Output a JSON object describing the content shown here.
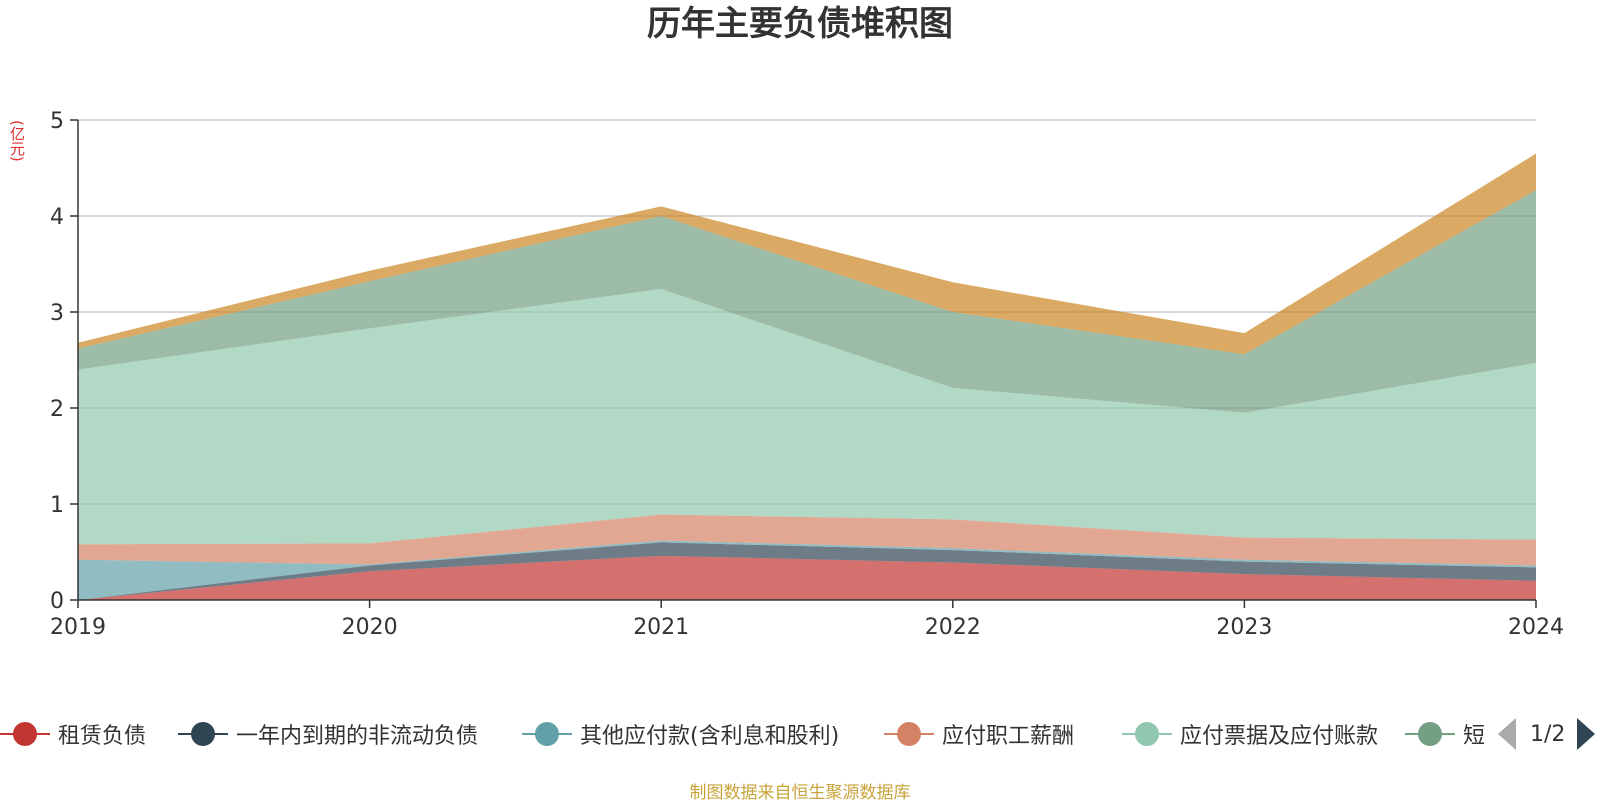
{
  "title": "历年主要负债堆积图",
  "unit_label": "(亿元)",
  "source_note": "制图数据来自恒生聚源数据库",
  "pager": {
    "text": "1/2"
  },
  "legend": [
    {
      "label": "租赁负债",
      "color": "#c23531"
    },
    {
      "label": "一年内到期的非流动负债",
      "color": "#2f4554"
    },
    {
      "label": "其他应付款(含利息和股利)",
      "color": "#61a0a8"
    },
    {
      "label": "应付职工薪酬",
      "color": "#d48265"
    },
    {
      "label": "应付票据及应付账款",
      "color": "#91c7ae"
    },
    {
      "label": "短",
      "color": "#749f83"
    }
  ],
  "chart_data": {
    "type": "area",
    "stacked": true,
    "title": "历年主要负债堆积图",
    "ylabel": "(亿元)",
    "x": [
      "2019",
      "2020",
      "2021",
      "2022",
      "2023",
      "2024"
    ],
    "ylim": [
      0,
      5
    ],
    "yticks": [
      0,
      1,
      2,
      3,
      4,
      5
    ],
    "grid": true,
    "legend_position": "bottom",
    "series": [
      {
        "name": "租赁负债",
        "color": "#c23531",
        "values": [
          0.0,
          0.3,
          0.46,
          0.39,
          0.27,
          0.2
        ]
      },
      {
        "name": "一年内到期的非流动负债",
        "color": "#2f4554",
        "values": [
          0.0,
          0.06,
          0.14,
          0.13,
          0.13,
          0.14
        ]
      },
      {
        "name": "其他应付款(含利息和股利)",
        "color": "#61a0a8",
        "values": [
          0.42,
          0.01,
          0.02,
          0.02,
          0.02,
          0.02
        ]
      },
      {
        "name": "应付职工薪酬",
        "color": "#d48265",
        "values": [
          0.16,
          0.22,
          0.27,
          0.3,
          0.23,
          0.27
        ]
      },
      {
        "name": "应付票据及应付账款",
        "color": "#91c7ae",
        "values": [
          1.82,
          2.24,
          2.35,
          1.37,
          1.3,
          1.84
        ]
      },
      {
        "name": "短",
        "color": "#749f83",
        "values": [
          0.22,
          0.49,
          0.76,
          0.79,
          0.61,
          1.8
        ]
      },
      {
        "name": "",
        "color": "#ca8622",
        "values": [
          0.06,
          0.11,
          0.1,
          0.31,
          0.22,
          0.38
        ]
      }
    ]
  }
}
